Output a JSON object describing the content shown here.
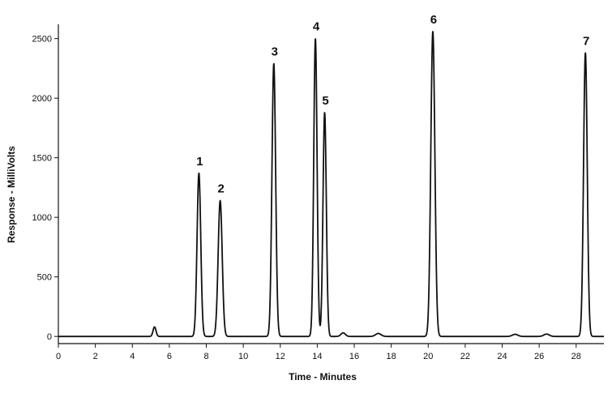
{
  "chart_data": {
    "type": "line",
    "xlabel": "Time - Minutes",
    "ylabel": "Response - MilliVolts",
    "xlim": [
      0,
      29.5
    ],
    "ylim": [
      -60,
      2620
    ],
    "x_ticks": [
      0,
      2,
      4,
      6,
      8,
      10,
      12,
      14,
      16,
      18,
      20,
      22,
      24,
      26,
      28
    ],
    "y_ticks": [
      0,
      500,
      1000,
      1500,
      2000,
      2500
    ],
    "grid": false,
    "legend": "none",
    "baseline": 0,
    "peaks": [
      {
        "label": "",
        "x": 5.2,
        "y": 80,
        "width": 0.08
      },
      {
        "label": "1",
        "x": 7.6,
        "y": 1370,
        "width": 0.1
      },
      {
        "label": "2",
        "x": 8.75,
        "y": 1140,
        "width": 0.11
      },
      {
        "label": "3",
        "x": 11.65,
        "y": 2290,
        "width": 0.1
      },
      {
        "label": "4",
        "x": 13.9,
        "y": 2500,
        "width": 0.09
      },
      {
        "label": "5",
        "x": 14.4,
        "y": 1880,
        "width": 0.09
      },
      {
        "label": "",
        "x": 15.4,
        "y": 30,
        "width": 0.12
      },
      {
        "label": "",
        "x": 17.3,
        "y": 25,
        "width": 0.15
      },
      {
        "label": "6",
        "x": 20.25,
        "y": 2560,
        "width": 0.11
      },
      {
        "label": "",
        "x": 24.7,
        "y": 18,
        "width": 0.15
      },
      {
        "label": "",
        "x": 26.4,
        "y": 20,
        "width": 0.15
      },
      {
        "label": "7",
        "x": 28.5,
        "y": 2380,
        "width": 0.1
      }
    ]
  },
  "colors": {
    "line": "#111111",
    "axis": "#111111"
  }
}
